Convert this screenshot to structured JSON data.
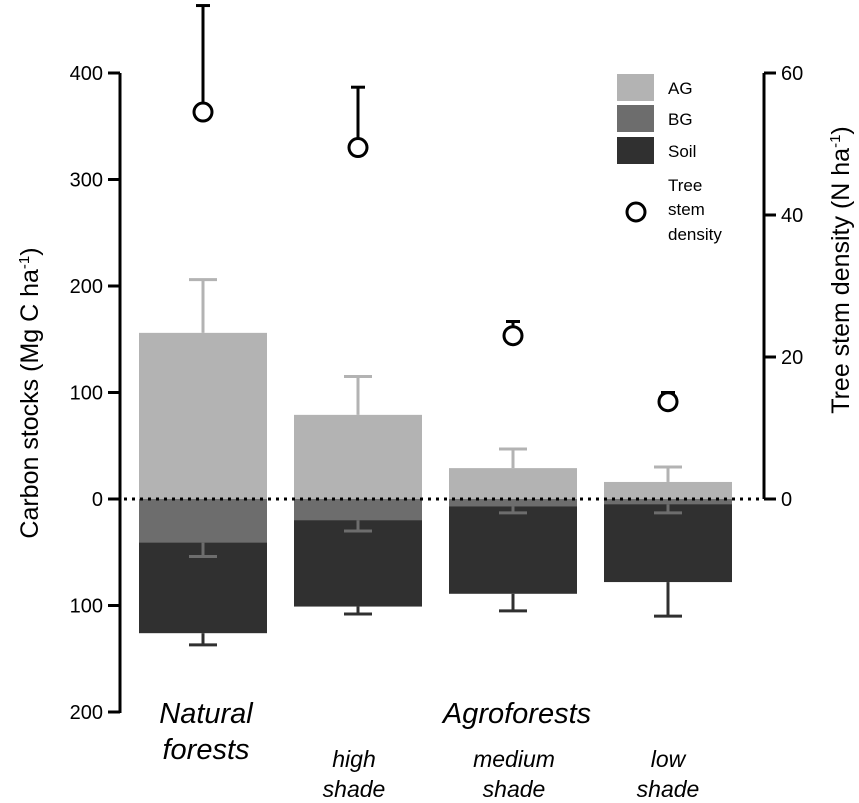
{
  "chart_data": {
    "type": "bar",
    "left_axis": {
      "label": "Carbon stocks (Mg C ha",
      "label_sup": "-1",
      "label_close": ")",
      "range": [
        -200,
        400
      ],
      "ticks": [
        400,
        300,
        200,
        100,
        0,
        -100,
        -200
      ],
      "tick_labels": [
        "400",
        "300",
        "200",
        "100",
        "0",
        "100",
        "200"
      ]
    },
    "right_axis": {
      "label": "Tree stem density (N ha",
      "label_sup": "-1",
      "label_close": ")",
      "range": [
        0,
        60
      ],
      "ticks": [
        0,
        20,
        40,
        60
      ],
      "tick_labels": [
        "0",
        "20",
        "40",
        "60"
      ]
    },
    "group_labels": {
      "natural": [
        "Natural",
        "forests"
      ],
      "agro": "Agroforests",
      "high": [
        "high",
        "shade"
      ],
      "medium": [
        "medium",
        "shade"
      ],
      "low": [
        "low",
        "shade"
      ]
    },
    "legend": {
      "ag": "AG",
      "bg": "BG",
      "soil": "Soil",
      "density": [
        "Tree",
        "stem",
        "density"
      ]
    },
    "colors": {
      "ag": "#b3b3b3",
      "bg": "#6d6d6d",
      "soil": "#303030",
      "zero_line": "#000000"
    },
    "categories": [
      "Natural forests",
      "Agroforests high shade",
      "Agroforests medium shade",
      "Agroforests low shade"
    ],
    "series": [
      {
        "name": "AG",
        "values": [
          156,
          79,
          29,
          16
        ],
        "error_upper": [
          206,
          115,
          47,
          30
        ]
      },
      {
        "name": "BG",
        "values": [
          -41,
          -20,
          -7,
          -5
        ],
        "error_lower": [
          -54,
          -30,
          -13,
          -13
        ]
      },
      {
        "name": "Soil",
        "values": [
          -126,
          -101,
          -89,
          -78
        ],
        "error_lower": [
          -137,
          -108,
          -105,
          -110
        ]
      },
      {
        "name": "Tree stem density",
        "axis": "right",
        "values": [
          54.5,
          49.5,
          23.0,
          13.7
        ],
        "error_upper": [
          69.5,
          58.0,
          25.0,
          15.0
        ]
      }
    ]
  }
}
